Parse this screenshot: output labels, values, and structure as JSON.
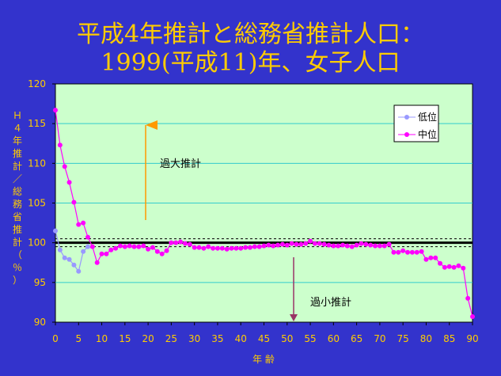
{
  "chart_data": {
    "type": "line",
    "title_line1": "平成4年推計と総務省推計人口：",
    "title_line2": "1999(平成11)年、女子人口",
    "xlabel": "年 齢",
    "ylabel": [
      "Ｈ",
      "４",
      "年",
      "推",
      "計",
      "／",
      "総",
      "務",
      "省",
      "推",
      "計",
      "（",
      "％",
      "）"
    ],
    "xlim": [
      0,
      90
    ],
    "ylim": [
      90,
      120
    ],
    "xticks": [
      0,
      5,
      10,
      15,
      20,
      25,
      30,
      35,
      40,
      45,
      50,
      55,
      60,
      65,
      70,
      75,
      80,
      85,
      90
    ],
    "yticks": [
      90,
      95,
      100,
      105,
      110,
      115,
      120
    ],
    "reference_lines": [
      100,
      100.5,
      99.5
    ],
    "annotations": {
      "over": "過大推計",
      "under": "過小推計"
    },
    "legend": {
      "placement": "top-right"
    },
    "series": [
      {
        "name": "低位",
        "color": "#9999ff",
        "x": [
          0,
          1,
          2,
          3,
          4,
          5,
          6,
          7
        ],
        "values": [
          101.5,
          99.1,
          98.1,
          97.9,
          97.2,
          96.4,
          98.9,
          99.5
        ]
      },
      {
        "name": "中位",
        "color": "#ff00ff",
        "x": [
          0,
          1,
          2,
          3,
          4,
          5,
          6,
          7,
          8,
          9,
          10,
          11,
          12,
          13,
          14,
          15,
          16,
          17,
          18,
          19,
          20,
          21,
          22,
          23,
          24,
          25,
          26,
          27,
          28,
          29,
          30,
          31,
          32,
          33,
          34,
          35,
          36,
          37,
          38,
          39,
          40,
          41,
          42,
          43,
          44,
          45,
          46,
          47,
          48,
          49,
          50,
          51,
          52,
          53,
          54,
          55,
          56,
          57,
          58,
          59,
          60,
          61,
          62,
          63,
          64,
          65,
          66,
          67,
          68,
          69,
          70,
          71,
          72,
          73,
          74,
          75,
          76,
          77,
          78,
          79,
          80,
          81,
          82,
          83,
          84,
          85,
          86,
          87,
          88,
          89,
          90
        ],
        "values": [
          116.7,
          112.3,
          109.6,
          107.6,
          105.1,
          102.3,
          102.5,
          100.7,
          99.5,
          97.5,
          98.6,
          98.6,
          99.1,
          99.3,
          99.6,
          99.5,
          99.6,
          99.5,
          99.5,
          99.6,
          99.2,
          99.4,
          98.9,
          98.6,
          99.0,
          100.0,
          100.0,
          100.1,
          99.9,
          99.8,
          99.4,
          99.4,
          99.3,
          99.5,
          99.3,
          99.3,
          99.3,
          99.2,
          99.3,
          99.3,
          99.3,
          99.4,
          99.4,
          99.5,
          99.5,
          99.6,
          99.7,
          99.6,
          99.7,
          99.8,
          99.7,
          99.9,
          99.8,
          99.8,
          99.9,
          100.2,
          99.9,
          99.9,
          99.8,
          99.7,
          99.6,
          99.6,
          99.7,
          99.6,
          99.5,
          99.7,
          99.9,
          99.8,
          99.7,
          99.6,
          99.6,
          99.6,
          99.8,
          98.8,
          98.8,
          99.0,
          98.8,
          98.8,
          98.8,
          98.9,
          97.9,
          98.1,
          98.1,
          97.4,
          96.9,
          97.0,
          96.9,
          97.1,
          96.8,
          93.0,
          90.7
        ]
      }
    ]
  }
}
